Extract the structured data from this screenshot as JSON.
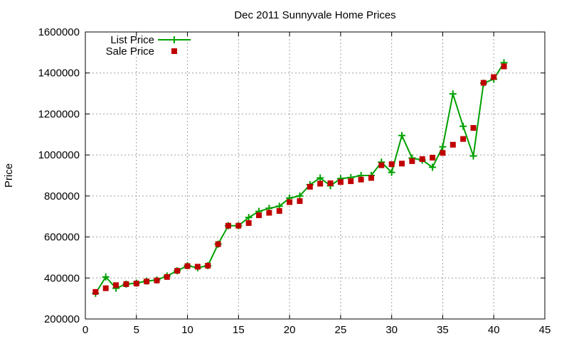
{
  "chart_data": {
    "type": "line",
    "title": "Dec 2011 Sunnyvale Home Prices",
    "xlabel": "",
    "ylabel": "Price",
    "xlim": [
      0,
      45
    ],
    "ylim": [
      200000,
      1600000
    ],
    "x_ticks": [
      0,
      5,
      10,
      15,
      20,
      25,
      30,
      35,
      40,
      45
    ],
    "y_ticks": [
      200000,
      400000,
      600000,
      800000,
      1000000,
      1200000,
      1400000,
      1600000
    ],
    "grid": true,
    "legend_position": "top-left",
    "x": [
      1,
      2,
      3,
      4,
      5,
      6,
      7,
      8,
      9,
      10,
      11,
      12,
      13,
      14,
      15,
      16,
      17,
      18,
      19,
      20,
      21,
      22,
      23,
      24,
      25,
      26,
      27,
      28,
      29,
      30,
      31,
      32,
      33,
      34,
      35,
      36,
      37,
      38,
      39,
      40,
      41
    ],
    "series": [
      {
        "name": "List Price",
        "style": "linespoints",
        "color": "#00a000",
        "values": [
          325000,
          405000,
          350000,
          370000,
          375000,
          385000,
          390000,
          410000,
          435000,
          460000,
          450000,
          460000,
          565000,
          655000,
          655000,
          695000,
          725000,
          740000,
          750000,
          790000,
          800000,
          855000,
          888000,
          850000,
          885000,
          890000,
          900000,
          900000,
          965000,
          915000,
          1095000,
          985000,
          975000,
          940000,
          1040000,
          1298000,
          1140000,
          995000,
          1350000,
          1370000,
          1450000
        ]
      },
      {
        "name": "Sale Price",
        "style": "points",
        "color": "#c00000",
        "values": [
          332000,
          350000,
          365000,
          370000,
          373000,
          383000,
          388000,
          405000,
          435000,
          458000,
          455000,
          460000,
          565000,
          655000,
          655000,
          668000,
          706000,
          718000,
          727000,
          770000,
          775000,
          845000,
          860000,
          862000,
          868000,
          872000,
          880000,
          888000,
          950000,
          955000,
          958000,
          970000,
          980000,
          987000,
          1010000,
          1050000,
          1078000,
          1132000,
          1352000,
          1380000,
          1432000
        ]
      }
    ]
  }
}
